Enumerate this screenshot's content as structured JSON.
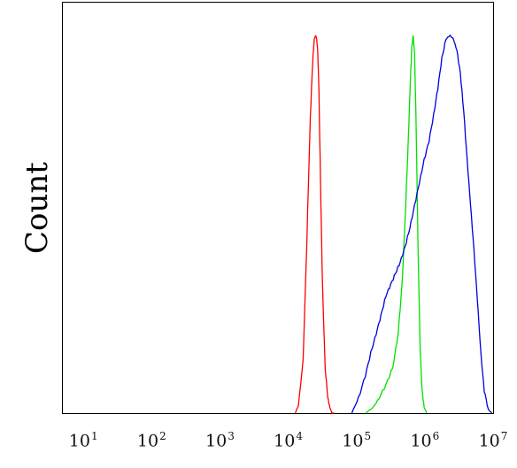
{
  "chart_data": {
    "type": "line",
    "ylabel": "Count",
    "x_scale": "log",
    "xlim": [
      5,
      10000000
    ],
    "ticks": [
      {
        "value": 10,
        "base": "10",
        "exp": "1"
      },
      {
        "value": 100,
        "base": "10",
        "exp": "2"
      },
      {
        "value": 1000,
        "base": "10",
        "exp": "3"
      },
      {
        "value": 10000,
        "base": "10",
        "exp": "4"
      },
      {
        "value": 100000,
        "base": "10",
        "exp": "5"
      },
      {
        "value": 1000000,
        "base": "10",
        "exp": "6"
      },
      {
        "value": 10000000,
        "base": "10",
        "exp": "7"
      }
    ],
    "grid": false,
    "series": [
      {
        "color": "#ff0000",
        "x": [
          12600,
          14100,
          16500,
          18700,
          21000,
          22800,
          24000,
          25200,
          26100,
          27000,
          28200,
          29600,
          31600,
          34700,
          38000,
          40700,
          43700,
          46800
        ],
        "y": [
          0.0,
          0.02,
          0.14,
          0.45,
          0.78,
          0.93,
          0.99,
          1.0,
          0.99,
          0.96,
          0.85,
          0.62,
          0.35,
          0.12,
          0.04,
          0.015,
          0.0,
          0.0
        ]
      },
      {
        "color": "#00e000",
        "x": [
          135000,
          175000,
          214000,
          269000,
          339000,
          407000,
          468000,
          525000,
          575000,
          617000,
          646000,
          676000,
          708000,
          750000,
          794000,
          851000,
          912000,
          977000,
          1070000
        ],
        "y": [
          0.0,
          0.015,
          0.04,
          0.075,
          0.12,
          0.21,
          0.35,
          0.55,
          0.73,
          0.89,
          0.97,
          1.0,
          0.95,
          0.74,
          0.45,
          0.18,
          0.06,
          0.015,
          0.0
        ]
      },
      {
        "color": "#0000e0",
        "x": [
          85000,
          107000,
          135000,
          162000,
          194000,
          229000,
          269000,
          316000,
          372000,
          437000,
          513000,
          603000,
          708000,
          832000,
          977000,
          1150000,
          1350000,
          1550000,
          1780000,
          2040000,
          2340000,
          2630000,
          2950000,
          3310000,
          3710000,
          4170000,
          4680000,
          5250000,
          5890000,
          6610000,
          7410000,
          8510000,
          9550000
        ],
        "y": [
          0.0,
          0.04,
          0.1,
          0.16,
          0.21,
          0.26,
          0.31,
          0.34,
          0.37,
          0.4,
          0.44,
          0.49,
          0.55,
          0.61,
          0.67,
          0.72,
          0.79,
          0.86,
          0.94,
          0.99,
          1.0,
          0.99,
          0.96,
          0.9,
          0.8,
          0.67,
          0.55,
          0.43,
          0.3,
          0.16,
          0.06,
          0.01,
          0.0
        ]
      }
    ]
  }
}
